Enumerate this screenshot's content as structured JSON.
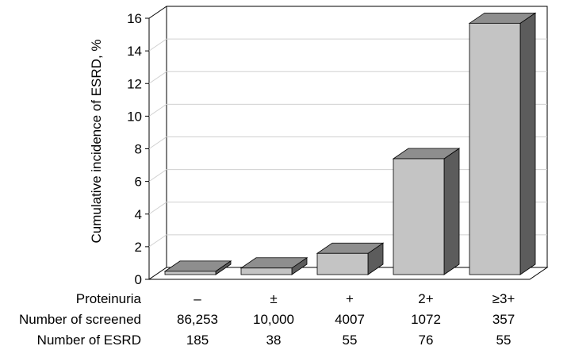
{
  "chart_data": {
    "type": "bar",
    "ylabel": "Cumulative incidence of ESRD, %",
    "ylim": [
      0,
      16
    ],
    "yticks": [
      0,
      2,
      4,
      6,
      8,
      10,
      12,
      14,
      16
    ],
    "grid": true,
    "categories": [
      "–",
      "±",
      "+",
      "2+",
      "≥3+"
    ],
    "values": [
      0.2,
      0.4,
      1.3,
      7.1,
      15.4
    ],
    "table": {
      "rows": [
        {
          "label": "Proteinuria",
          "values": [
            "–",
            "±",
            "+",
            "2+",
            "≥3+"
          ]
        },
        {
          "label": "Number of screened",
          "values": [
            "86,253",
            "10,000",
            "4007",
            "1072",
            "357"
          ]
        },
        {
          "label": "Number of ESRD",
          "values": [
            "185",
            "38",
            "55",
            "76",
            "55"
          ]
        }
      ]
    }
  },
  "colors": {
    "bar_front": "#c4c4c4",
    "bar_top": "#8e8e8e",
    "bar_side": "#5c5c5c",
    "grid": "#d0d0d0",
    "axis": "#000000"
  }
}
